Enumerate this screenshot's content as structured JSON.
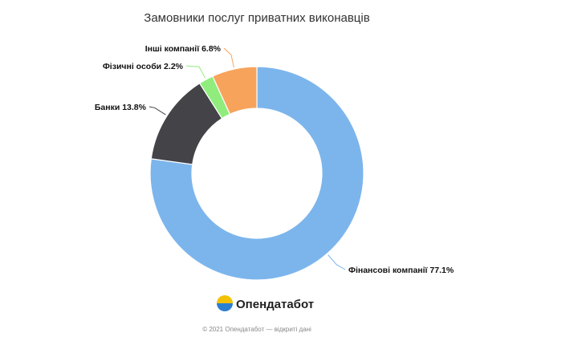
{
  "chart_data": {
    "type": "pie",
    "title": "Замовники послуг приватних виконавців",
    "slices": [
      {
        "label": "Фінансові компанії",
        "value": 77.1,
        "color": "#7cb5ec",
        "value_text": "Фінансові компанії 77.1%"
      },
      {
        "label": "Банки",
        "value": 13.8,
        "color": "#434348",
        "value_text": "Банки 13.8%"
      },
      {
        "label": "Фізичні особи",
        "value": 2.2,
        "color": "#90ed7d",
        "value_text": "Фізичні особи 2.2%"
      },
      {
        "label": "Інші компанії",
        "value": 6.8,
        "color": "#f7a35c",
        "value_text": "Інші компанії 6.8%"
      }
    ],
    "legend": "none"
  },
  "branding": {
    "logo_text": "Опендатабот",
    "logo_colors": [
      "#f2c200",
      "#2b7fd1"
    ]
  },
  "footer": {
    "text": "© 2021 Опендатабот — відкриті дані"
  }
}
